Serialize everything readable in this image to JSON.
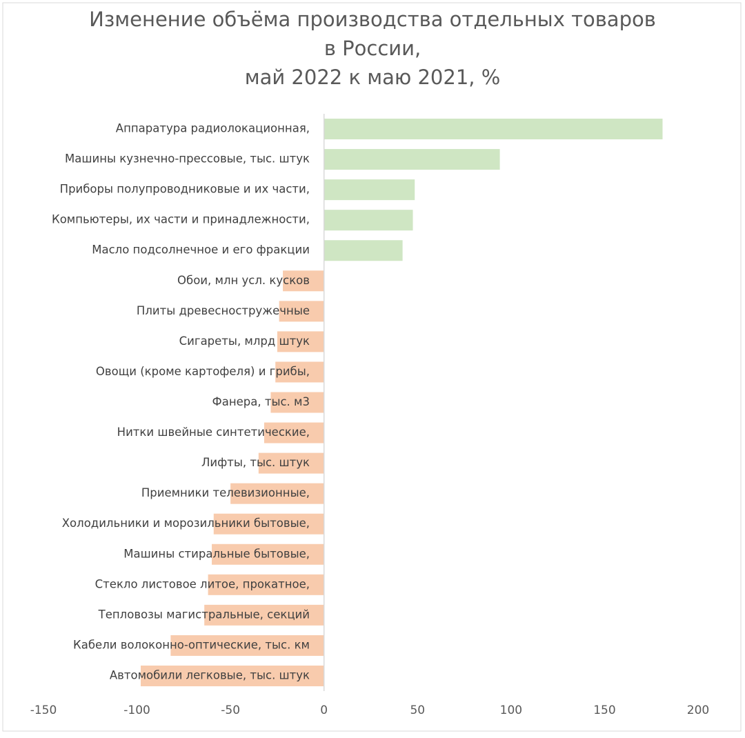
{
  "chart_data": {
    "type": "barh",
    "title_lines": [
      "Изменение объёма производства отдельных товаров",
      "в России,",
      "май 2022 к маю 2021, %"
    ],
    "categories": [
      "Аппаратура радиолокационная,",
      "Машины кузнечно-прессовые, тыс. штук",
      "Приборы полупроводниковые и их части,",
      "Компьютеры, их части и принадлежности,",
      "Масло подсолнечное и его фракции",
      "Обои, млн усл. кусков",
      "Плиты древесностружечные",
      "Сигареты, млрд штук",
      "Овощи (кроме картофеля) и грибы,",
      "Фанера, тыс. м3",
      "Нитки швейные синтетические,",
      "Лифты, тыс. штук",
      "Приемники телевизионные,",
      "Холодильники и морозильники бытовые,",
      "Машины стиральные бытовые,",
      "Стекло листовое литое, прокатное,",
      "Тепловозы магистральные, секций",
      "Кабели волоконно-оптические, тыс. км",
      "Автомобили легковые, тыс. штук"
    ],
    "values": [
      181,
      94,
      48.5,
      47.5,
      42,
      -22,
      -24,
      -25,
      -26,
      -28.5,
      -32,
      -35,
      -50,
      -59,
      -60,
      -62,
      -64,
      -82,
      -98
    ],
    "positive_color": "#cfe6c3",
    "negative_color": "#f8cbad",
    "xlim": [
      -150,
      200
    ],
    "xticks": [
      -150,
      -100,
      -50,
      0,
      50,
      100,
      150,
      200
    ],
    "grid": false
  }
}
